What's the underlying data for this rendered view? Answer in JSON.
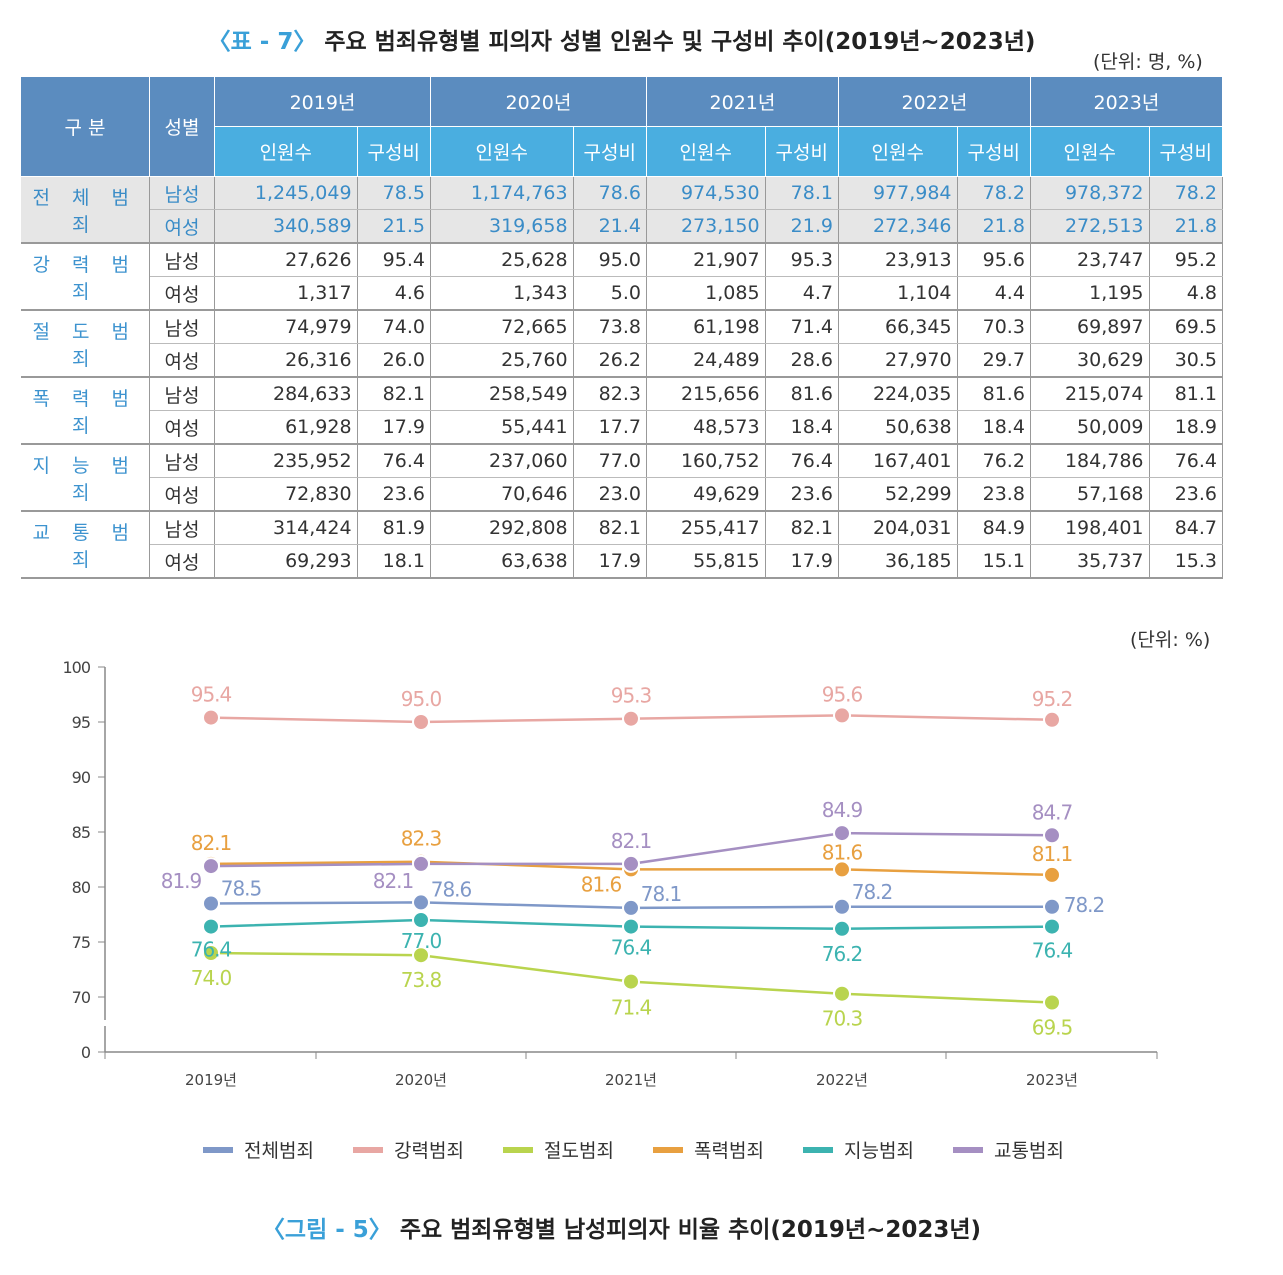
{
  "table": {
    "title_prefix": "〈표 - 7〉",
    "title": " 주요 범죄유형별 피의자 성별 인원수 및 구성비 추이(2019년~2023년)",
    "unit": "(단위: 명, %)",
    "header": {
      "category": "구 분",
      "gender": "성별",
      "years": [
        "2019년",
        "2020년",
        "2021년",
        "2022년",
        "2023년"
      ],
      "count": "인원수",
      "ratio": "구성비"
    },
    "groups": [
      {
        "name": "전 체 범 죄",
        "rows": [
          {
            "gender": "남성",
            "values": [
              "1,245,049",
              "78.5",
              "1,174,763",
              "78.6",
              "974,530",
              "78.1",
              "977,984",
              "78.2",
              "978,372",
              "78.2"
            ]
          },
          {
            "gender": "여성",
            "values": [
              "340,589",
              "21.5",
              "319,658",
              "21.4",
              "273,150",
              "21.9",
              "272,346",
              "21.8",
              "272,513",
              "21.8"
            ]
          }
        ]
      },
      {
        "name": "강 력 범 죄",
        "rows": [
          {
            "gender": "남성",
            "values": [
              "27,626",
              "95.4",
              "25,628",
              "95.0",
              "21,907",
              "95.3",
              "23,913",
              "95.6",
              "23,747",
              "95.2"
            ]
          },
          {
            "gender": "여성",
            "values": [
              "1,317",
              "4.6",
              "1,343",
              "5.0",
              "1,085",
              "4.7",
              "1,104",
              "4.4",
              "1,195",
              "4.8"
            ]
          }
        ]
      },
      {
        "name": "절 도 범 죄",
        "rows": [
          {
            "gender": "남성",
            "values": [
              "74,979",
              "74.0",
              "72,665",
              "73.8",
              "61,198",
              "71.4",
              "66,345",
              "70.3",
              "69,897",
              "69.5"
            ]
          },
          {
            "gender": "여성",
            "values": [
              "26,316",
              "26.0",
              "25,760",
              "26.2",
              "24,489",
              "28.6",
              "27,970",
              "29.7",
              "30,629",
              "30.5"
            ]
          }
        ]
      },
      {
        "name": "폭 력 범 죄",
        "rows": [
          {
            "gender": "남성",
            "values": [
              "284,633",
              "82.1",
              "258,549",
              "82.3",
              "215,656",
              "81.6",
              "224,035",
              "81.6",
              "215,074",
              "81.1"
            ]
          },
          {
            "gender": "여성",
            "values": [
              "61,928",
              "17.9",
              "55,441",
              "17.7",
              "48,573",
              "18.4",
              "50,638",
              "18.4",
              "50,009",
              "18.9"
            ]
          }
        ]
      },
      {
        "name": "지 능 범 죄",
        "rows": [
          {
            "gender": "남성",
            "values": [
              "235,952",
              "76.4",
              "237,060",
              "77.0",
              "160,752",
              "76.4",
              "167,401",
              "76.2",
              "184,786",
              "76.4"
            ]
          },
          {
            "gender": "여성",
            "values": [
              "72,830",
              "23.6",
              "70,646",
              "23.0",
              "49,629",
              "23.6",
              "52,299",
              "23.8",
              "57,168",
              "23.6"
            ]
          }
        ]
      },
      {
        "name": "교 통 범 죄",
        "rows": [
          {
            "gender": "남성",
            "values": [
              "314,424",
              "81.9",
              "292,808",
              "82.1",
              "255,417",
              "82.1",
              "204,031",
              "84.9",
              "198,401",
              "84.7"
            ]
          },
          {
            "gender": "여성",
            "values": [
              "69,293",
              "18.1",
              "63,638",
              "17.9",
              "55,815",
              "17.9",
              "36,185",
              "15.1",
              "35,737",
              "15.3"
            ]
          }
        ]
      }
    ]
  },
  "chart_data": {
    "type": "line",
    "unit": "(단위: %)",
    "categories": [
      "2019년",
      "2020년",
      "2021년",
      "2022년",
      "2023년"
    ],
    "yticks": [
      "100",
      "95",
      "90",
      "85",
      "80",
      "75",
      "70",
      "0"
    ],
    "y_axis_break": "between 0 and 70",
    "legend_position": "bottom",
    "series": [
      {
        "name": "전체범죄",
        "color": "#7f98c8",
        "values": [
          78.5,
          78.6,
          78.1,
          78.2,
          78.2
        ]
      },
      {
        "name": "강력범죄",
        "color": "#e8a7a3",
        "values": [
          95.4,
          95.0,
          95.3,
          95.6,
          95.2
        ]
      },
      {
        "name": "절도범죄",
        "color": "#b9d44e",
        "values": [
          74.0,
          73.8,
          71.4,
          70.3,
          69.5
        ]
      },
      {
        "name": "폭력범죄",
        "color": "#e8a040",
        "values": [
          82.1,
          82.3,
          81.6,
          81.6,
          81.1
        ]
      },
      {
        "name": "지능범죄",
        "color": "#3cb3b0",
        "values": [
          76.4,
          77.0,
          76.4,
          76.2,
          76.4
        ]
      },
      {
        "name": "교통범죄",
        "color": "#a58fc2",
        "values": [
          81.9,
          82.1,
          82.1,
          84.9,
          84.7
        ]
      }
    ]
  },
  "caption": {
    "prefix": "〈그림 - 5〉",
    "text": " 주요 범죄유형별 남성피의자 비율 추이(2019년~2023년)"
  }
}
